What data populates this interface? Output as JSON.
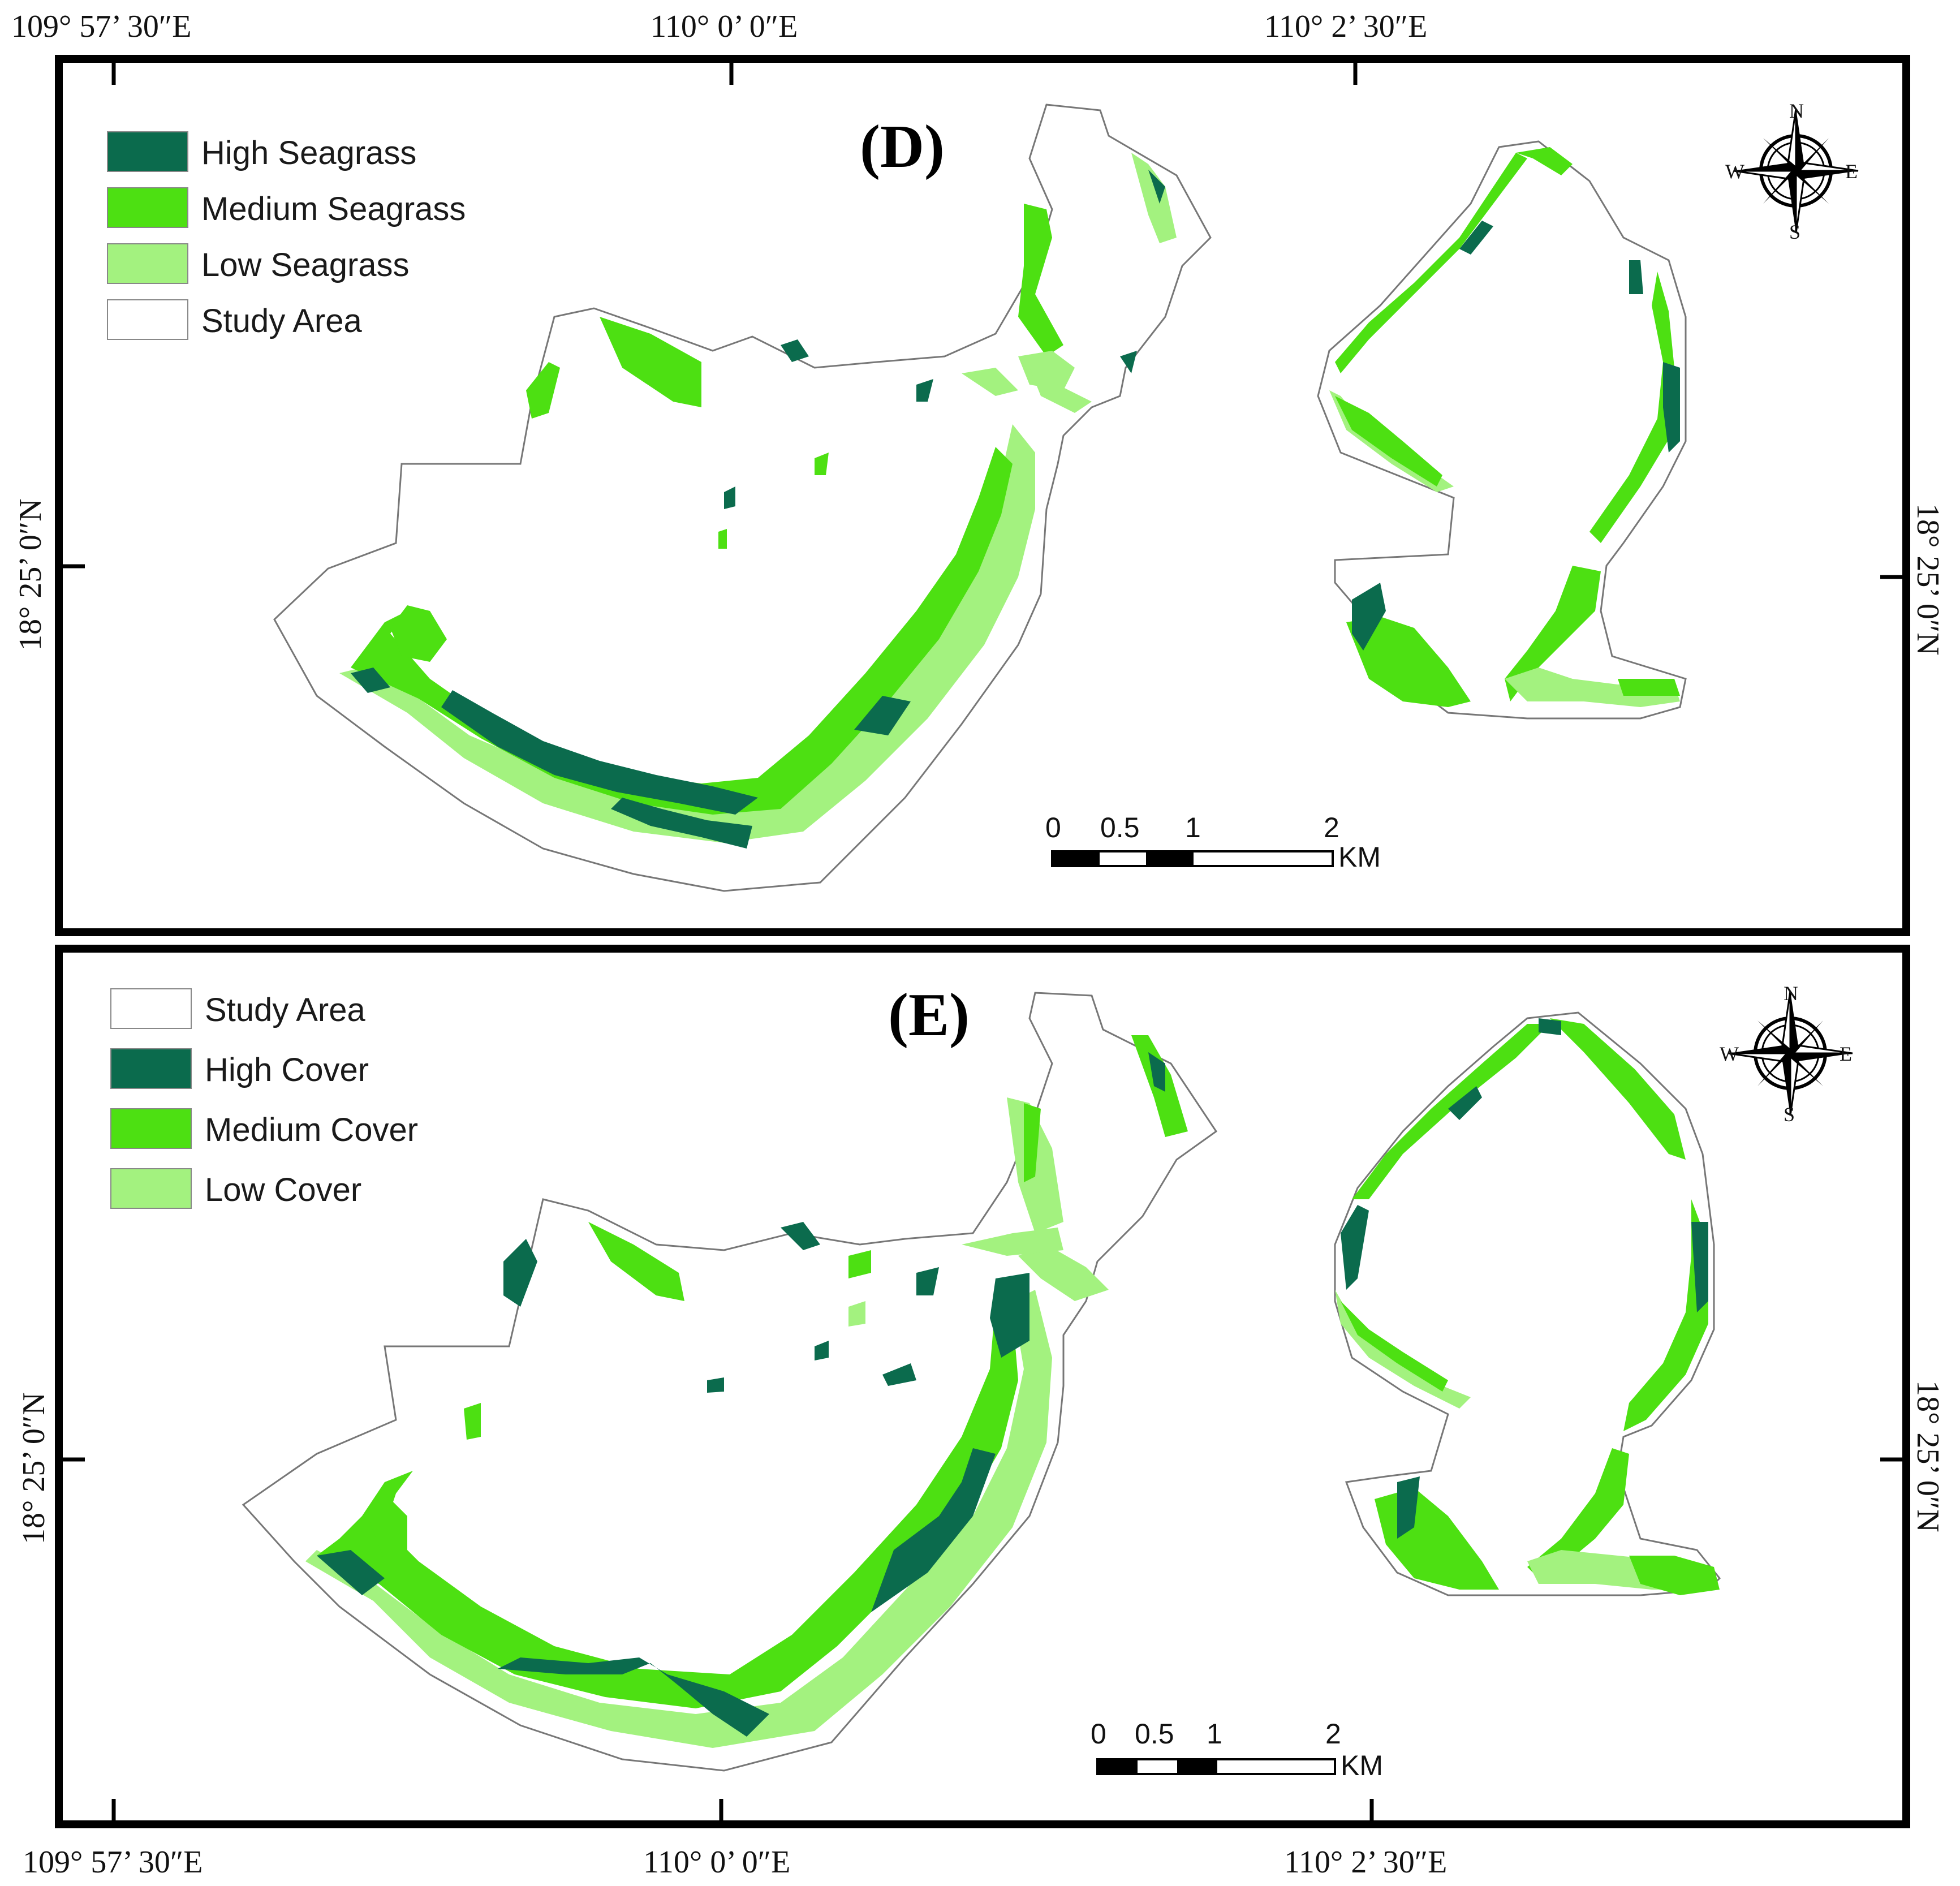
{
  "coordinates": {
    "top": [
      "109° 57’ 30″E",
      "110° 0’ 0″E",
      "110° 2’ 30″E"
    ],
    "bottom": [
      "109° 57’ 30″E",
      "110° 0’ 0″E",
      "110° 2’ 30″E"
    ],
    "latitude": "18° 25’ 0″N"
  },
  "panels": [
    {
      "label": "(D)",
      "legend": [
        {
          "label": "High Seagrass",
          "color": "#0b6b4d"
        },
        {
          "label": "Medium Seagrass",
          "color": "#4de012"
        },
        {
          "label": "Low Seagrass",
          "color": "#a3f27f"
        },
        {
          "label": "Study Area",
          "color": "#ffffff"
        }
      ],
      "scalebar": {
        "ticks": [
          "0",
          "0.5",
          "1",
          "2"
        ],
        "unit": "KM"
      }
    },
    {
      "label": "(E)",
      "legend": [
        {
          "label": "Study Area",
          "color": "#ffffff"
        },
        {
          "label": "High Cover",
          "color": "#0b6b4d"
        },
        {
          "label": "Medium Cover",
          "color": "#4de012"
        },
        {
          "label": "Low Cover",
          "color": "#a3f27f"
        }
      ],
      "scalebar": {
        "ticks": [
          "0",
          "0.5",
          "1",
          "2"
        ],
        "unit": "KM"
      }
    }
  ],
  "compass": {
    "n": "N",
    "s": "S",
    "e": "E",
    "w": "W",
    "icon": "compass-rose-icon"
  },
  "colors": {
    "high": "#0b6b4d",
    "medium": "#4de012",
    "low": "#a3f27f",
    "frame": "#000000"
  }
}
